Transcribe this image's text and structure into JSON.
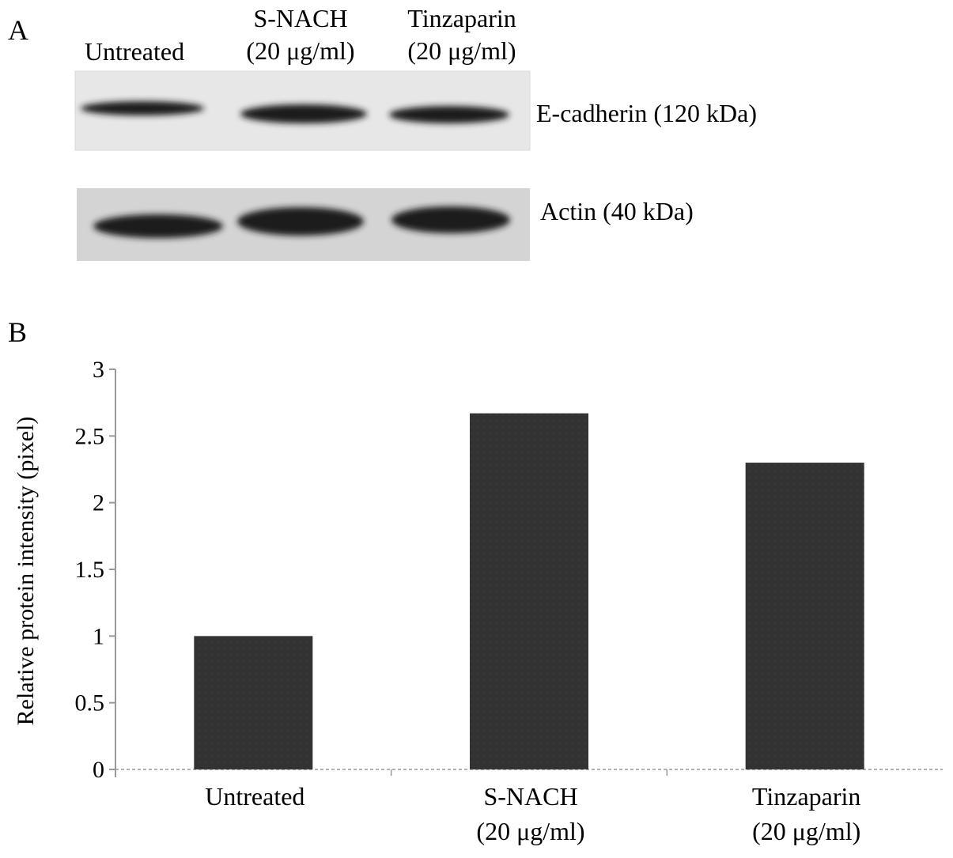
{
  "panel_a": {
    "label": "A",
    "lanes": [
      {
        "line1": "Untreated",
        "line2": ""
      },
      {
        "line1": "S-NACH",
        "line2": "(20 μg/ml)"
      },
      {
        "line1": "Tinzaparin",
        "line2": "(20 μg/ml)"
      }
    ],
    "blots": [
      {
        "label": "E-cadherin (120 kDa)",
        "band_intensity": [
          0.45,
          0.95,
          0.85
        ]
      },
      {
        "label": "Actin (40 kDa)",
        "band_intensity": [
          0.9,
          0.95,
          0.95
        ]
      }
    ]
  },
  "panel_b": {
    "label": "B"
  },
  "colors": {
    "bar": "#333333",
    "axis": "#999999",
    "band": "#1a1a1a"
  },
  "chart_data": {
    "type": "bar",
    "title": "",
    "xlabel": "",
    "ylabel": "Relative protein intensity (pixel)",
    "ylim": [
      0,
      3
    ],
    "yticks": [
      0,
      0.5,
      1,
      1.5,
      2,
      2.5,
      3
    ],
    "ytick_labels": [
      "0",
      "0.5",
      "1",
      "1.5",
      "2",
      "2.5",
      "3"
    ],
    "grid": false,
    "categories": [
      {
        "line1": "Untreated",
        "line2": ""
      },
      {
        "line1": "S-NACH",
        "line2": "(20 μg/ml)"
      },
      {
        "line1": "Tinzaparin",
        "line2": "(20 μg/ml)"
      }
    ],
    "values": [
      1.0,
      2.67,
      2.3
    ]
  }
}
